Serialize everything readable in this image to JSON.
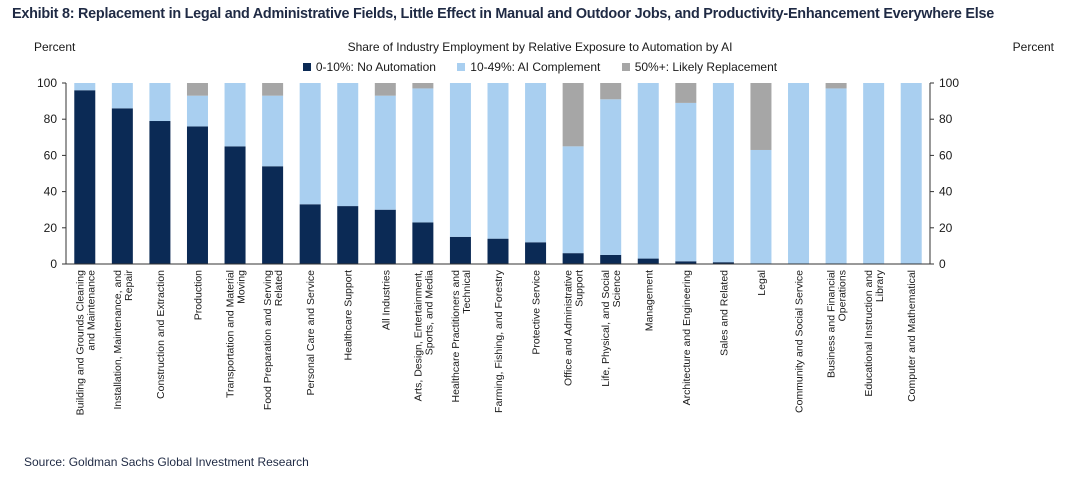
{
  "exhibit_title": "Exhibit 8: Replacement in Legal and Administrative Fields, Little Effect in Manual and Outdoor Jobs, and Productivity-Enhancement Everywhere Else",
  "source": "Source: Goldman Sachs Global Investment Research",
  "chart_data": {
    "type": "bar",
    "stacked": true,
    "title": "Share of Industry Employment by Relative  Exposure to Automation by AI",
    "ylabel_left": "Percent",
    "ylabel_right": "Percent",
    "ylim": [
      0,
      100
    ],
    "yticks": [
      0,
      20,
      40,
      60,
      80,
      100
    ],
    "grid": false,
    "legend_position": "top-center",
    "categories": [
      [
        "Building and Grounds Cleaning",
        "and Maintenance"
      ],
      [
        "Installation, Maintenance, and",
        "Repair"
      ],
      [
        "Construction and Extraction"
      ],
      [
        "Production"
      ],
      [
        "Transportation and Material",
        "Moving"
      ],
      [
        "Food Preparation and Serving",
        "Related"
      ],
      [
        "Personal Care and Service"
      ],
      [
        "Healthcare Support"
      ],
      [
        "All Industries"
      ],
      [
        "Arts, Design, Entertainment,",
        "Sports, and Media"
      ],
      [
        "Healthcare Practitioners and",
        "Technical"
      ],
      [
        "Farming, Fishing, and Forestry"
      ],
      [
        "Protective Service"
      ],
      [
        "Office and Administrative",
        "Support"
      ],
      [
        "Life, Physical, and Social",
        "Science"
      ],
      [
        "Management"
      ],
      [
        "Architecture and Engineering"
      ],
      [
        "Sales and Related"
      ],
      [
        "Legal"
      ],
      [
        "Community and Social Service"
      ],
      [
        "Business and Financial",
        "Operations"
      ],
      [
        "Educational Instruction and",
        "Library"
      ],
      [
        "Computer and Mathematical"
      ]
    ],
    "series": [
      {
        "name": "0-10%: No Automation",
        "color": "#0b2a55",
        "values": [
          96,
          86,
          79,
          76,
          65,
          54,
          33,
          32,
          30,
          23,
          15,
          14,
          12,
          6,
          5,
          3,
          1.5,
          1,
          0,
          0,
          0,
          0,
          0
        ]
      },
      {
        "name": "10-49%: AI Complement",
        "color": "#a9cff0",
        "values": [
          4,
          14,
          21,
          17,
          35,
          39,
          67,
          68,
          63,
          74,
          85,
          86,
          88,
          59,
          86,
          97,
          87.5,
          99,
          63,
          100,
          97,
          100,
          100
        ]
      },
      {
        "name": "50%+: Likely Replacement",
        "color": "#a6a6a6",
        "values": [
          0,
          0,
          0,
          7,
          0,
          7,
          0,
          0,
          7,
          3,
          0,
          0,
          0,
          35,
          9,
          0,
          11,
          0,
          37,
          0,
          3,
          0,
          0
        ]
      }
    ]
  }
}
